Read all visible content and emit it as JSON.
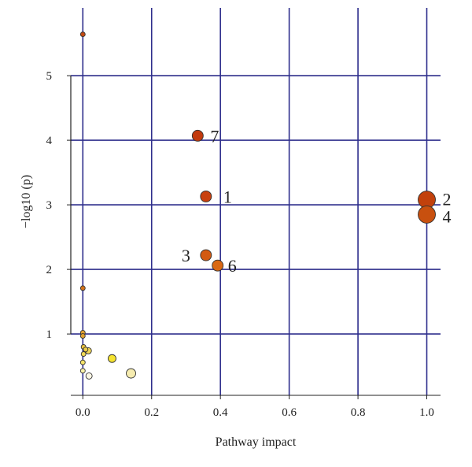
{
  "chart_data": {
    "type": "scatter",
    "title": "",
    "xlabel": "Pathway impact",
    "ylabel": "−log10 (p)",
    "xlim": [
      -0.035,
      1.04
    ],
    "ylim": [
      0.05,
      6.05
    ],
    "xticks": [
      0.0,
      0.2,
      0.4,
      0.6,
      0.8,
      1.0
    ],
    "xtick_labels": [
      "0.0",
      "0.2",
      "0.4",
      "0.6",
      "0.8",
      "1.0"
    ],
    "yticks": [
      1,
      2,
      3,
      4,
      5
    ],
    "ytick_labels": [
      "1",
      "2",
      "3",
      "4",
      "5"
    ],
    "grid": true,
    "grid_color": "#2e2e8c",
    "points": [
      {
        "x": 0.0,
        "y": 5.64,
        "r": 3,
        "color": "#c44a12",
        "label": ""
      },
      {
        "x": 0.334,
        "y": 4.07,
        "r": 7,
        "color": "#c23a0e",
        "label": "7"
      },
      {
        "x": 0.358,
        "y": 3.13,
        "r": 7,
        "color": "#c8410f",
        "label": "1"
      },
      {
        "x": 1.0,
        "y": 3.08,
        "r": 11,
        "color": "#c2410c",
        "label": "2"
      },
      {
        "x": 1.0,
        "y": 2.85,
        "r": 11,
        "color": "#c8500f",
        "label": "4"
      },
      {
        "x": 0.358,
        "y": 2.22,
        "r": 7,
        "color": "#d35a12",
        "label": "3"
      },
      {
        "x": 0.392,
        "y": 2.06,
        "r": 7,
        "color": "#d96814",
        "label": "6"
      },
      {
        "x": 0.0,
        "y": 1.71,
        "r": 3,
        "color": "#d4731a",
        "label": ""
      },
      {
        "x": 0.0,
        "y": 1.02,
        "r": 3,
        "color": "#e0a030",
        "label": ""
      },
      {
        "x": 0.0,
        "y": 0.97,
        "r": 3,
        "color": "#e0a030",
        "label": ""
      },
      {
        "x": 0.002,
        "y": 0.8,
        "r": 3,
        "color": "#e8c040",
        "label": ""
      },
      {
        "x": 0.008,
        "y": 0.76,
        "r": 3,
        "color": "#eccb48",
        "label": ""
      },
      {
        "x": 0.016,
        "y": 0.74,
        "r": 4,
        "color": "#efd55a",
        "label": ""
      },
      {
        "x": 0.002,
        "y": 0.69,
        "r": 3,
        "color": "#f0d858",
        "label": ""
      },
      {
        "x": 0.085,
        "y": 0.62,
        "r": 5,
        "color": "#f5e330",
        "label": ""
      },
      {
        "x": 0.0,
        "y": 0.56,
        "r": 3,
        "color": "#f5e36a",
        "label": ""
      },
      {
        "x": 0.0,
        "y": 0.43,
        "r": 3,
        "color": "#f8f0a8",
        "label": ""
      },
      {
        "x": 0.14,
        "y": 0.39,
        "r": 6,
        "color": "#f6ecb0",
        "label": ""
      },
      {
        "x": 0.018,
        "y": 0.35,
        "r": 4,
        "color": "#fdf8e6",
        "label": ""
      }
    ]
  }
}
